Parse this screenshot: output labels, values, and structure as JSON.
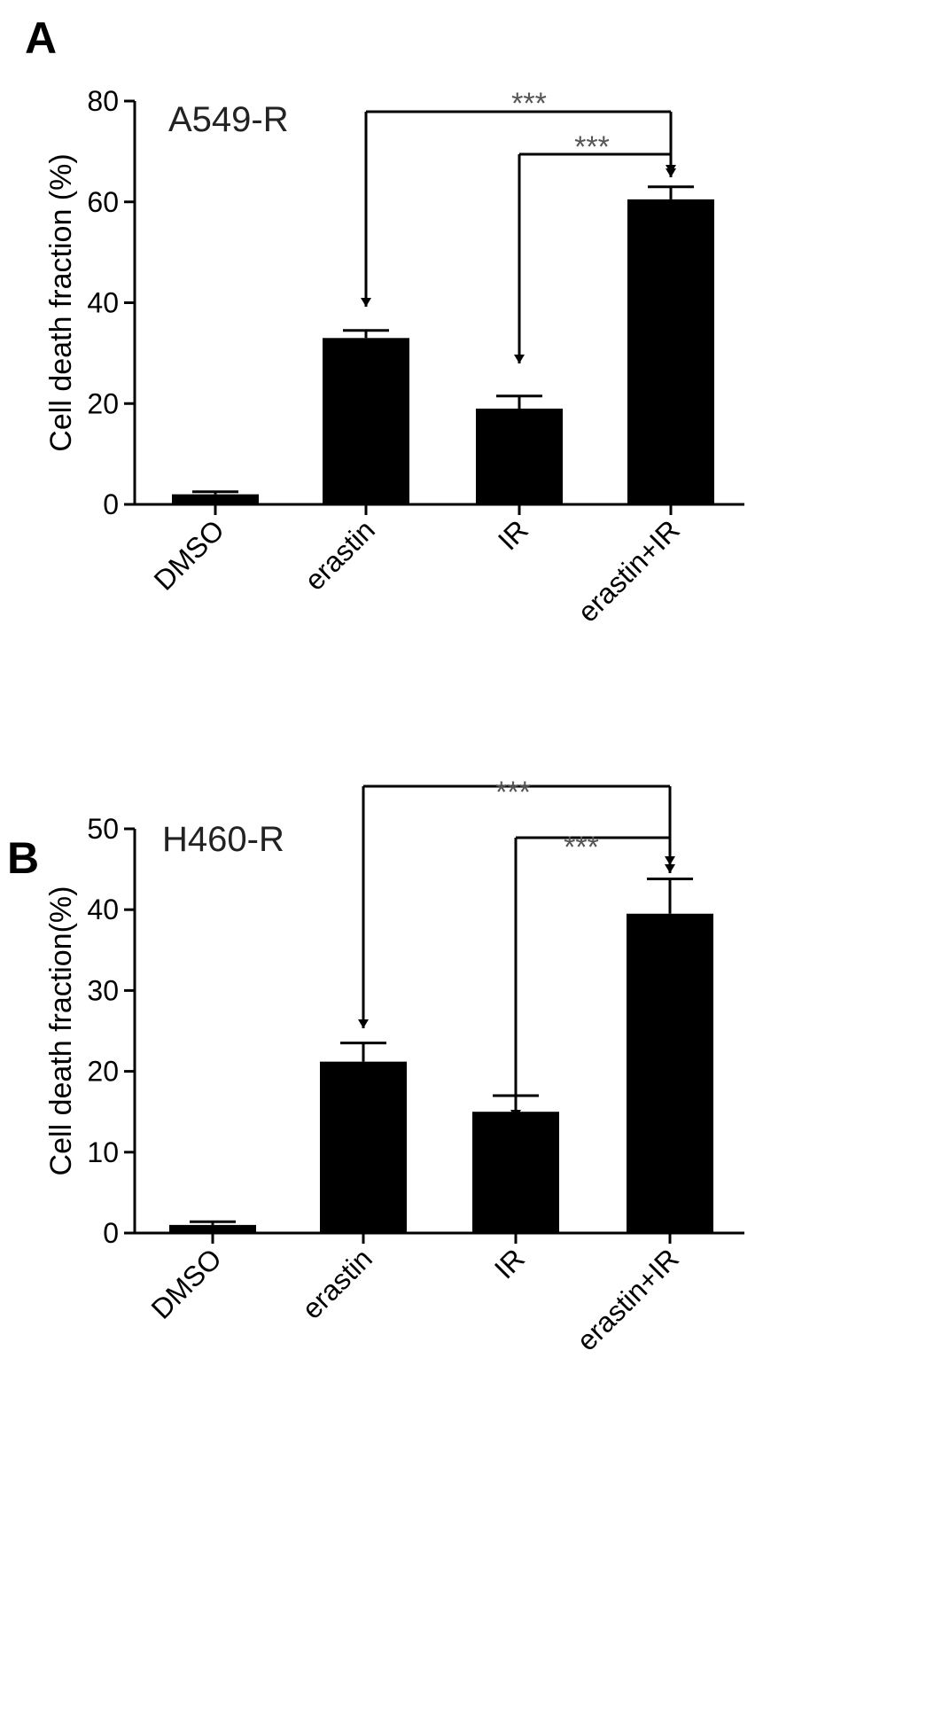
{
  "chart_data": [
    {
      "panel": "A",
      "type": "bar",
      "title": "A549-R",
      "ylabel": "Cell death fraction (%)",
      "xlabel": "",
      "ylim": [
        0,
        80
      ],
      "yticks": [
        0,
        20,
        40,
        60,
        80
      ],
      "categories": [
        "DMSO",
        "erastin",
        "IR",
        "erastin+IR"
      ],
      "values": [
        2,
        33,
        19,
        60.5
      ],
      "errors": [
        0.5,
        1.5,
        2.5,
        2.5
      ],
      "significance": [
        {
          "from": "erastin",
          "to": "erastin+IR",
          "label": "***"
        },
        {
          "from": "IR",
          "to": "erastin+IR",
          "label": "***"
        }
      ],
      "bar_color": "#000000",
      "grid": false
    },
    {
      "panel": "B",
      "type": "bar",
      "title": "H460-R",
      "ylabel": "Cell death fraction(%)",
      "xlabel": "",
      "ylim": [
        0,
        50
      ],
      "yticks": [
        0,
        10,
        20,
        30,
        40,
        50
      ],
      "categories": [
        "DMSO",
        "erastin",
        "IR",
        "erastin+IR"
      ],
      "values": [
        1,
        21.2,
        15,
        39.5
      ],
      "errors": [
        0.4,
        2.3,
        2.0,
        4.3
      ],
      "significance": [
        {
          "from": "erastin",
          "to": "erastin+IR",
          "label": "***"
        },
        {
          "from": "IR",
          "to": "erastin+IR",
          "label": "***"
        }
      ],
      "bar_color": "#000000",
      "grid": false
    }
  ]
}
